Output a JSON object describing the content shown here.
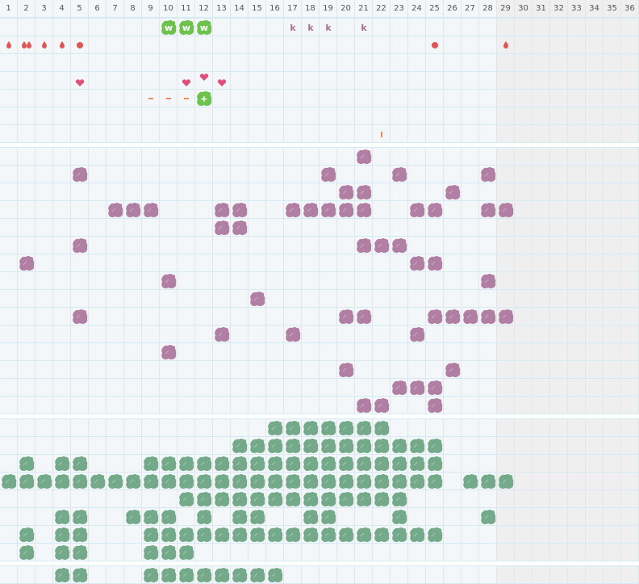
{
  "columns": [
    "1",
    "2",
    "3",
    "4",
    "5",
    "6",
    "7",
    "8",
    "9",
    "10",
    "11",
    "12",
    "13",
    "14",
    "15",
    "16",
    "17",
    "18",
    "19",
    "20",
    "21",
    "22",
    "23",
    "24",
    "25",
    "26",
    "27",
    "28",
    "29",
    "30",
    "31",
    "32",
    "33",
    "34",
    "35",
    "36"
  ],
  "active_columns": 28,
  "colors": {
    "grid_bg": "#f3f7f9",
    "inactive_bg": "#efefef",
    "grid_line": "#d6eaf3",
    "purple": "#b07fa3",
    "green_muted": "#74aa8a",
    "green_bright": "#6cc24a",
    "red": "#e05555",
    "pink": "#e0507a",
    "orange": "#f08a5a",
    "k_color": "#a97096"
  },
  "sections": [
    {
      "name": "symptoms",
      "rows": 7,
      "marks": [
        {
          "row": 1,
          "col": 10,
          "type": "green-blob",
          "label": "w"
        },
        {
          "row": 1,
          "col": 11,
          "type": "green-blob",
          "label": "w"
        },
        {
          "row": 1,
          "col": 12,
          "type": "green-blob",
          "label": "w"
        },
        {
          "row": 1,
          "col": 17,
          "type": "letter",
          "label": "k"
        },
        {
          "row": 1,
          "col": 18,
          "type": "letter",
          "label": "k"
        },
        {
          "row": 1,
          "col": 19,
          "type": "letter",
          "label": "k"
        },
        {
          "row": 1,
          "col": 21,
          "type": "letter",
          "label": "k"
        },
        {
          "row": 2,
          "col": 1,
          "type": "drop-icon"
        },
        {
          "row": 2,
          "col": 2,
          "type": "double-drop-icon"
        },
        {
          "row": 2,
          "col": 3,
          "type": "drop-icon"
        },
        {
          "row": 2,
          "col": 4,
          "type": "drop-icon"
        },
        {
          "row": 2,
          "col": 5,
          "type": "dot-icon"
        },
        {
          "row": 2,
          "col": 25,
          "type": "dot-icon"
        },
        {
          "row": 2,
          "col": 29,
          "type": "drop-icon"
        },
        {
          "row": 4,
          "col": 5,
          "type": "heart-icon"
        },
        {
          "row": 4,
          "col": 11,
          "type": "heart-icon"
        },
        {
          "row": 4,
          "col": 12,
          "type": "heart-high-icon"
        },
        {
          "row": 4,
          "col": 13,
          "type": "heart-icon"
        },
        {
          "row": 5,
          "col": 9,
          "type": "dash-icon"
        },
        {
          "row": 5,
          "col": 10,
          "type": "dash-icon"
        },
        {
          "row": 5,
          "col": 11,
          "type": "dash-icon"
        },
        {
          "row": 5,
          "col": 12,
          "type": "green-blob",
          "label": "+"
        },
        {
          "row": 7,
          "col": 22,
          "type": "bar-icon"
        }
      ]
    },
    {
      "name": "purple-track",
      "rows": 15,
      "blob_color": "purple",
      "filled": [
        [
          21
        ],
        [
          5,
          19,
          23,
          28
        ],
        [
          20,
          21,
          26
        ],
        [
          7,
          8,
          9,
          13,
          14,
          17,
          18,
          19,
          20,
          21,
          24,
          25,
          28,
          29
        ],
        [
          13,
          14
        ],
        [
          5,
          21,
          22,
          23
        ],
        [
          2,
          24,
          25
        ],
        [
          10,
          28
        ],
        [
          15
        ],
        [
          5,
          20,
          21,
          25,
          26,
          27,
          28,
          29
        ],
        [
          13,
          17,
          24
        ],
        [
          10
        ],
        [
          20,
          26
        ],
        [
          23,
          24,
          25
        ],
        [
          21,
          22,
          25
        ]
      ]
    },
    {
      "name": "green-track",
      "rows": 8,
      "blob_color": "green_muted",
      "filled": [
        [
          16,
          17,
          18,
          19,
          20,
          21,
          22
        ],
        [
          14,
          15,
          16,
          17,
          18,
          19,
          20,
          21,
          22,
          23,
          24,
          25
        ],
        [
          2,
          4,
          5,
          9,
          10,
          11,
          12,
          13,
          14,
          15,
          16,
          17,
          18,
          19,
          20,
          21,
          22,
          23,
          24,
          25
        ],
        [
          1,
          2,
          3,
          4,
          5,
          6,
          7,
          8,
          9,
          10,
          11,
          12,
          13,
          14,
          15,
          16,
          17,
          18,
          19,
          20,
          21,
          22,
          23,
          24,
          25,
          27,
          28,
          29
        ],
        [
          11,
          12,
          13,
          14,
          15,
          16,
          17,
          18,
          19,
          20,
          21,
          22,
          23
        ],
        [
          4,
          5,
          8,
          9,
          10,
          12,
          14,
          15,
          18,
          19,
          23,
          28
        ],
        [
          2,
          4,
          5,
          9,
          10,
          11,
          12,
          13,
          14,
          15,
          16,
          17,
          18,
          19,
          20,
          21,
          22,
          23,
          24,
          25
        ],
        [
          2,
          4,
          5,
          9,
          10,
          11
        ]
      ]
    },
    {
      "name": "green-track-2",
      "rows": 1,
      "blob_color": "green_muted",
      "filled": [
        [
          4,
          5,
          9,
          10,
          11,
          12,
          13,
          14,
          15,
          16
        ]
      ]
    }
  ]
}
